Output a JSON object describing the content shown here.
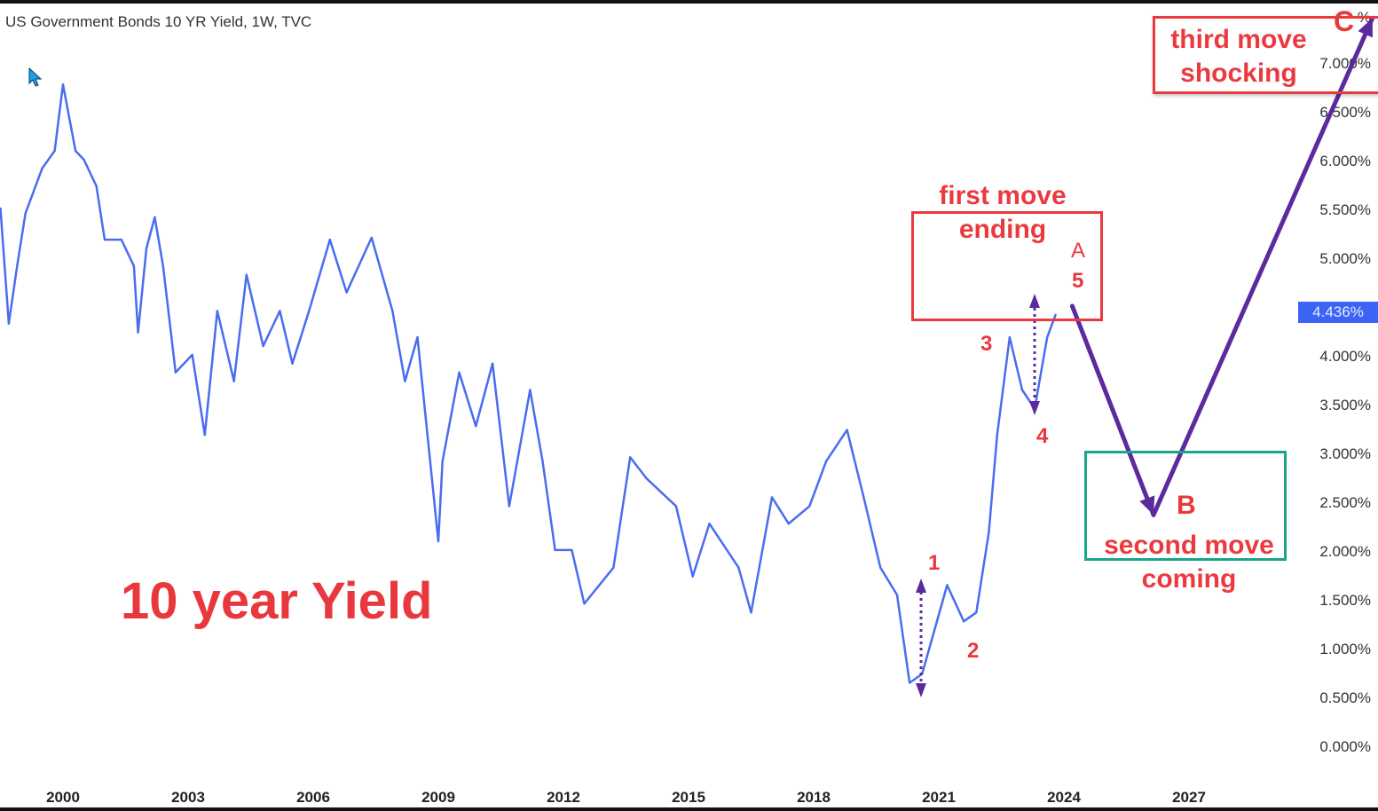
{
  "header": {
    "title": "US Government Bonds 10 YR Yield, 1W, TVC"
  },
  "chart_data": {
    "type": "line",
    "title": "US Government Bonds 10 YR Yield, 1W, TVC",
    "x_ticks": [
      "2000",
      "2003",
      "2006",
      "2009",
      "2012",
      "2015",
      "2018",
      "2021",
      "2024",
      "2027"
    ],
    "y_ticks": [
      "0.000%",
      "0.500%",
      "1.000%",
      "1.500%",
      "2.000%",
      "2.500%",
      "3.000%",
      "3.500%",
      "4.000%",
      "5.000%",
      "5.500%",
      "6.000%",
      "6.500%",
      "7.000%",
      "%"
    ],
    "y_unit": "%",
    "ylim": [
      0,
      7.5
    ],
    "grid": false,
    "line_color": "#4a6cf0",
    "series": [
      {
        "x": [
          1998.5,
          1998.7,
          1998.9,
          1999.1,
          1999.5,
          1999.8,
          2000.0,
          2000.3,
          2000.5,
          2000.8,
          2001.0,
          2001.4,
          2001.7,
          2001.8,
          2002.0,
          2002.2,
          2002.4,
          2002.7,
          2003.1,
          2003.4,
          2003.7,
          2004.1,
          2004.4,
          2004.8,
          2005.2,
          2005.5,
          2005.9,
          2006.4,
          2006.8,
          2007.4,
          2007.9,
          2008.2,
          2008.5,
          2009.0,
          2009.1,
          2009.5,
          2009.9,
          2010.3,
          2010.7,
          2011.2,
          2011.5,
          2011.8,
          2012.2,
          2012.5,
          2013.2,
          2013.6,
          2014.0,
          2014.7,
          2015.1,
          2015.5,
          2016.2,
          2016.5,
          2017.0,
          2017.4,
          2017.9,
          2018.3,
          2018.8,
          2019.2,
          2019.6,
          2020.0,
          2020.3,
          2020.6,
          2021.2,
          2021.6,
          2021.9,
          2022.2,
          2022.4,
          2022.7,
          2023.0,
          2023.3,
          2023.6,
          2023.8
        ],
        "y": [
          5.51,
          4.33,
          4.92,
          5.46,
          5.92,
          6.1,
          6.78,
          6.1,
          6.01,
          5.74,
          5.19,
          5.19,
          4.92,
          4.24,
          5.1,
          5.42,
          4.92,
          3.83,
          4.01,
          3.19,
          4.46,
          3.74,
          4.83,
          4.1,
          4.46,
          3.92,
          4.46,
          5.19,
          4.65,
          5.21,
          4.46,
          3.74,
          4.19,
          2.1,
          2.92,
          3.83,
          3.28,
          3.92,
          2.46,
          3.65,
          2.92,
          2.01,
          2.01,
          1.46,
          1.83,
          2.96,
          2.74,
          2.46,
          1.74,
          2.28,
          1.83,
          1.37,
          2.55,
          2.28,
          2.46,
          2.92,
          3.24,
          2.55,
          1.83,
          1.55,
          0.65,
          0.74,
          1.65,
          1.28,
          1.37,
          2.19,
          3.19,
          4.19,
          3.65,
          3.46,
          4.19,
          4.42
        ]
      }
    ],
    "last_value": "4.436%",
    "projection": {
      "color": "#5b2a9e",
      "x": [
        2024.2,
        2026.15,
        2031.4
      ],
      "y": [
        4.51,
        2.37,
        7.46
      ]
    }
  },
  "annotations": {
    "big_label": "10 year Yield",
    "first_move_line1": "first move",
    "first_move_line2": "ending",
    "second_move_line1": "second move",
    "second_move_line2": "coming",
    "third_move_line1": "third move",
    "third_move_line2": "shocking",
    "waves": {
      "w1": "1",
      "w2": "2",
      "w3": "3",
      "w4": "4",
      "w5": "5",
      "a": "A",
      "b": "B",
      "c": "C"
    },
    "red": "#ea3a3f",
    "green": "#1aa58a",
    "purple": "#5b2a9e"
  }
}
